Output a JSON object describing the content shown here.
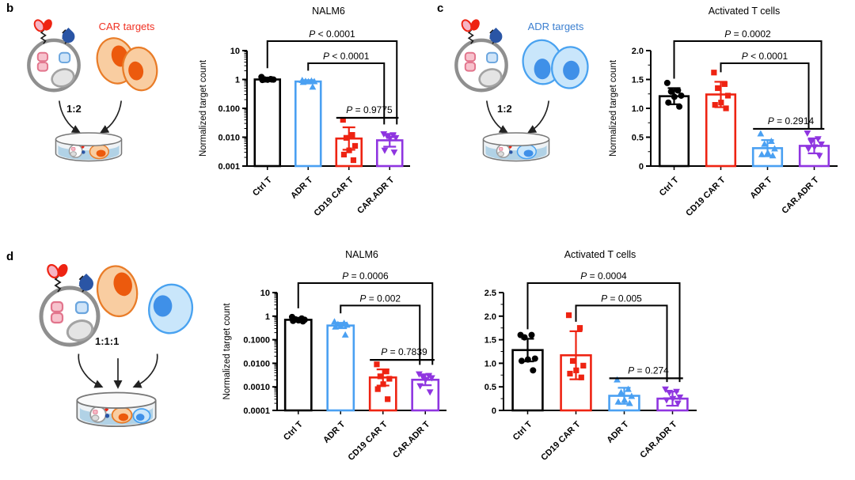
{
  "palette": {
    "black": "#000000",
    "blue": "#4aa0f2",
    "red": "#ee2312",
    "purple": "#8f35e0",
    "navy": "#2a55a5",
    "gray": "#8f8f8f",
    "orange_fill": "#f9cda1",
    "orange_stroke": "#e97c28",
    "orange_nuc": "#ec5a0d",
    "bluecell_fill": "#c9e6fb",
    "bluecell_stroke": "#49a2f0",
    "bluecell_nuc": "#3f90e8",
    "car_label": "#f03123",
    "adr_label": "#3b7fd0",
    "dish_fluid": "#abcfe4"
  },
  "panels": {
    "b": {
      "label": "b",
      "target_label": "CAR targets",
      "ratio": "1:2"
    },
    "c": {
      "label": "c",
      "target_label": "ADR targets",
      "ratio": "1:2"
    },
    "d": {
      "label": "d",
      "ratio": "1:1:1"
    }
  },
  "chart_data": [
    {
      "panel": "b",
      "type": "bar",
      "title": "NALM6",
      "ylabel": "Normalized target count",
      "yscale": "log",
      "ylim": [
        0.001,
        10
      ],
      "yticks": [
        {
          "value": 10,
          "label": "10"
        },
        {
          "value": 1,
          "label": "1"
        },
        {
          "value": 0.1,
          "label": "0.100"
        },
        {
          "value": 0.01,
          "label": "0.010"
        },
        {
          "value": 0.001,
          "label": "0.001"
        }
      ],
      "categories": [
        "Ctrl T",
        "ADR T",
        "CD19 CAR T",
        "CAR.ADR T"
      ],
      "colors": [
        "#000000",
        "#4aa0f2",
        "#ee2312",
        "#8f35e0"
      ],
      "markers": [
        "circle",
        "triangle-up",
        "square",
        "triangle-down"
      ],
      "values": [
        1.0,
        0.85,
        0.009,
        0.0078
      ],
      "error_high": [
        1.15,
        0.95,
        0.022,
        0.013
      ],
      "points": [
        [
          1.22,
          1.03,
          1.0,
          0.99,
          0.98,
          0.96,
          1.0
        ],
        [
          0.93,
          0.89,
          0.87,
          0.85,
          0.84,
          0.8,
          0.55
        ],
        [
          0.04,
          0.012,
          0.0095,
          0.005,
          0.0035,
          0.0025,
          0.0016
        ],
        [
          0.013,
          0.012,
          0.011,
          0.0095,
          0.009,
          0.0035,
          0.003
        ]
      ],
      "significance": [
        {
          "from": 0,
          "to": 3,
          "label": "P < 0.0001",
          "style": "bracket"
        },
        {
          "from": 1,
          "to": 3,
          "label": "P < 0.0001",
          "style": "bracket"
        },
        {
          "from": 2,
          "to": 3,
          "label": "P = 0.9775",
          "style": "underline"
        }
      ]
    },
    {
      "panel": "c",
      "type": "bar",
      "title": "Activated T cells",
      "ylabel": "Normalized target count",
      "yscale": "linear",
      "ylim": [
        0,
        2.0
      ],
      "yticks": [
        {
          "value": 2.0,
          "label": "2.0"
        },
        {
          "value": 1.5,
          "label": "1.5"
        },
        {
          "value": 1.0,
          "label": "1.0"
        },
        {
          "value": 0.5,
          "label": "0.5"
        },
        {
          "value": 0,
          "label": "0"
        }
      ],
      "categories": [
        "Ctrl T",
        "CD19 CAR T",
        "ADR T",
        "CAR.ADR T"
      ],
      "colors": [
        "#000000",
        "#ee2312",
        "#4aa0f2",
        "#8f35e0"
      ],
      "markers": [
        "circle",
        "square",
        "triangle-up",
        "triangle-down"
      ],
      "values": [
        1.21,
        1.24,
        0.31,
        0.35
      ],
      "error_high": [
        1.35,
        1.46,
        0.45,
        0.48
      ],
      "points": [
        [
          1.44,
          1.31,
          1.29,
          1.22,
          1.2,
          1.1,
          1.03
        ],
        [
          1.62,
          1.42,
          1.35,
          1.22,
          1.1,
          1.06,
          1.0
        ],
        [
          0.56,
          0.43,
          0.38,
          0.3,
          0.23,
          0.2,
          0.18
        ],
        [
          0.57,
          0.47,
          0.42,
          0.38,
          0.33,
          0.3,
          0.18
        ]
      ],
      "significance": [
        {
          "from": 0,
          "to": 3,
          "label": "P = 0.0002",
          "style": "bracket"
        },
        {
          "from": 1,
          "to": 3,
          "label": "P < 0.0001",
          "style": "bracket"
        },
        {
          "from": 2,
          "to": 3,
          "label": "P = 0.2914",
          "style": "underline"
        }
      ]
    },
    {
      "panel": "d",
      "type": "bar",
      "title": "NALM6",
      "ylabel": "Normalized target count",
      "yscale": "log",
      "ylim": [
        0.0001,
        10
      ],
      "yticks": [
        {
          "value": 10,
          "label": "10"
        },
        {
          "value": 1,
          "label": "1"
        },
        {
          "value": 0.1,
          "label": "0.1000"
        },
        {
          "value": 0.01,
          "label": "0.0100"
        },
        {
          "value": 0.001,
          "label": "0.0010"
        },
        {
          "value": 0.0001,
          "label": "0.0001"
        }
      ],
      "categories": [
        "Ctrl T",
        "ADR T",
        "CD19 CAR T",
        "CAR.ADR T"
      ],
      "colors": [
        "#000000",
        "#4aa0f2",
        "#ee2312",
        "#8f35e0"
      ],
      "markers": [
        "circle",
        "triangle-up",
        "square",
        "triangle-down"
      ],
      "values": [
        0.7,
        0.4,
        0.0025,
        0.002
      ],
      "error_high": [
        0.85,
        0.52,
        0.0055,
        0.0034
      ],
      "points": [
        [
          0.92,
          0.8,
          0.73,
          0.7,
          0.66,
          0.63,
          0.6
        ],
        [
          0.58,
          0.5,
          0.45,
          0.42,
          0.38,
          0.35,
          0.16
        ],
        [
          0.009,
          0.0045,
          0.0028,
          0.0022,
          0.0013,
          0.0008,
          0.0003
        ],
        [
          0.0035,
          0.003,
          0.0027,
          0.0024,
          0.002,
          0.0011,
          0.0006
        ]
      ],
      "significance": [
        {
          "from": 0,
          "to": 3,
          "label": "P = 0.0006",
          "style": "bracket"
        },
        {
          "from": 1,
          "to": 3,
          "label": "P = 0.002",
          "style": "bracket"
        },
        {
          "from": 2,
          "to": 3,
          "label": "P = 0.7839",
          "style": "underline"
        }
      ]
    },
    {
      "panel": "d",
      "type": "bar",
      "title": "Activated T cells",
      "ylabel": "",
      "yscale": "linear",
      "ylim": [
        0,
        2.5
      ],
      "yticks": [
        {
          "value": 2.5,
          "label": "2.5"
        },
        {
          "value": 2.0,
          "label": "2.0"
        },
        {
          "value": 1.5,
          "label": "1.5"
        },
        {
          "value": 1.0,
          "label": "1.0"
        },
        {
          "value": 0.5,
          "label": "0.5"
        },
        {
          "value": 0,
          "label": "0"
        }
      ],
      "categories": [
        "Ctrl T",
        "CD19 CAR T",
        "ADR T",
        "CAR.ADR T"
      ],
      "colors": [
        "#000000",
        "#ee2312",
        "#4aa0f2",
        "#8f35e0"
      ],
      "markers": [
        "circle",
        "square",
        "triangle-up",
        "triangle-down"
      ],
      "values": [
        1.28,
        1.17,
        0.31,
        0.25
      ],
      "error_high": [
        1.52,
        1.68,
        0.48,
        0.4
      ],
      "points": [
        [
          1.6,
          1.6,
          1.55,
          1.1,
          1.08,
          1.05,
          0.85
        ],
        [
          2.02,
          1.75,
          1.05,
          0.95,
          0.85,
          0.78,
          0.7
        ],
        [
          0.65,
          0.45,
          0.38,
          0.3,
          0.22,
          0.18,
          0.15
        ],
        [
          0.45,
          0.4,
          0.38,
          0.28,
          0.25,
          0.22,
          0.15
        ]
      ],
      "significance": [
        {
          "from": 0,
          "to": 3,
          "label": "P = 0.0004",
          "style": "bracket"
        },
        {
          "from": 1,
          "to": 3,
          "label": "P = 0.005",
          "style": "bracket"
        },
        {
          "from": 2,
          "to": 3,
          "label": "P = 0.274",
          "style": "underline"
        }
      ]
    }
  ]
}
